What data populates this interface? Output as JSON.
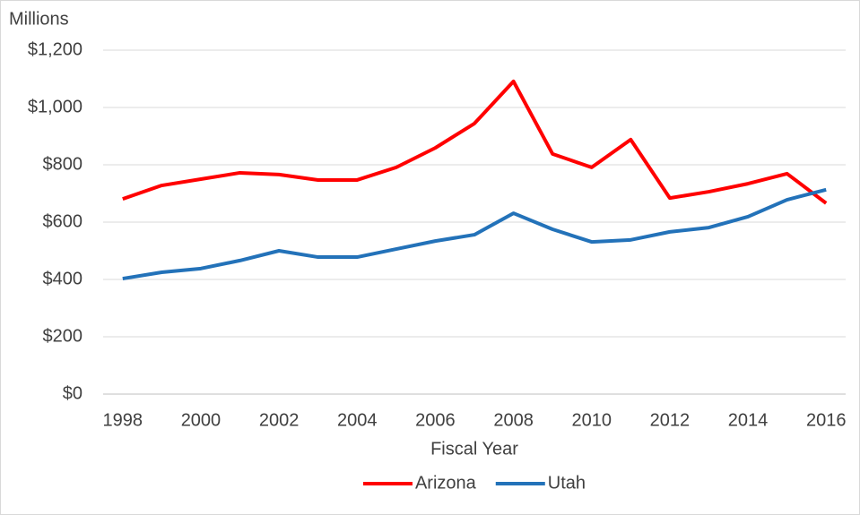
{
  "chart_data": {
    "type": "line",
    "y_unit_label": "Millions",
    "x_label": "Fiscal Year",
    "x": [
      1998,
      1999,
      2000,
      2001,
      2002,
      2003,
      2004,
      2005,
      2006,
      2007,
      2008,
      2009,
      2010,
      2011,
      2012,
      2013,
      2014,
      2015,
      2016
    ],
    "series": [
      {
        "name": "Arizona",
        "color": "#ff0000",
        "values": [
          681,
          728,
          750,
          772,
          766,
          747,
          747,
          791,
          859,
          944,
          1091,
          838,
          791,
          888,
          684,
          706,
          734,
          769,
          666
        ]
      },
      {
        "name": "Utah",
        "color": "#2372b9",
        "values": [
          403,
          425,
          438,
          466,
          500,
          478,
          478,
          506,
          534,
          556,
          631,
          575,
          531,
          538,
          566,
          581,
          619,
          678,
          713
        ]
      }
    ],
    "xlim": [
      1997.5,
      2016.5
    ],
    "xticks": [
      1998,
      2000,
      2002,
      2004,
      2006,
      2008,
      2010,
      2012,
      2014,
      2016
    ],
    "ylim": [
      0,
      1200
    ],
    "yticks": [
      {
        "value": 0,
        "label": "$0"
      },
      {
        "value": 200,
        "label": "$200"
      },
      {
        "value": 400,
        "label": "$400"
      },
      {
        "value": 600,
        "label": "$600"
      },
      {
        "value": 800,
        "label": "$800"
      },
      {
        "value": 1000,
        "label": "$1,000"
      },
      {
        "value": 1200,
        "label": "$1,200"
      }
    ],
    "grid": true,
    "legend": "bottom"
  }
}
